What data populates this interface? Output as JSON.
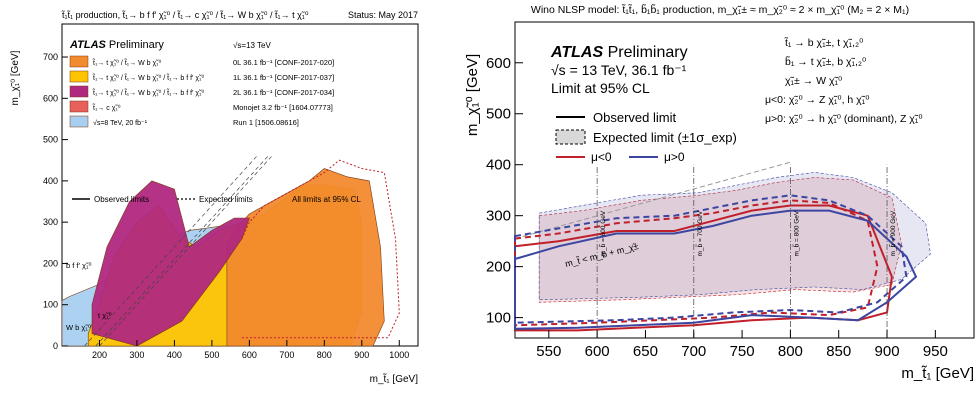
{
  "chart_data": [
    {
      "type": "area",
      "header": "t̃₁t̃₁ production, t̃₁→ b f f′ χ̃₁⁰ / t̃₁→ c χ̃₁⁰ / t̃₁→ W b χ̃₁⁰ / t̃₁→ t χ̃₁⁰",
      "status": "Status: May 2017",
      "brand": "ATLAS",
      "brand_suffix": "Preliminary",
      "xlabel": "m_t̃₁ [GeV]",
      "ylabel": "m_χ̃₁⁰ [GeV]",
      "xlim": [
        100,
        1050
      ],
      "ylim": [
        0,
        780
      ],
      "x_ticks": [
        200,
        300,
        400,
        500,
        600,
        700,
        800,
        900,
        1000
      ],
      "y_ticks": [
        0,
        100,
        200,
        300,
        400,
        500,
        600,
        700
      ],
      "legend_header": "√s=13 TeV",
      "legend": [
        {
          "label": "t̃₁→ t χ̃₁⁰ / t̃₁→ W b χ̃₁⁰",
          "ref": "0L 36.1 fb⁻¹ [CONF-2017-020]",
          "color": "#f28a2e"
        },
        {
          "label": "t̃₁→ t χ̃₁⁰ / t̃₁→ W b χ̃₁⁰ / t̃₁→ b f f′ χ̃₁⁰",
          "ref": "1L 36.1 fb⁻¹ [CONF-2017-037]",
          "color": "#ffc400"
        },
        {
          "label": "t̃₁→ t χ̃₁⁰ / t̃₁→ W b χ̃₁⁰ / t̃₁→ b f f′ χ̃₁⁰",
          "ref": "2L 36.1 fb⁻¹ [CONF-2017-034]",
          "color": "#b0287f"
        },
        {
          "label": "t̃₁→ c χ̃₁⁰",
          "ref": "Monojet 3.2 fb⁻¹ [1604.07773]",
          "color": "#e8605a"
        },
        {
          "label": "√s=8 TeV, 20 fb⁻¹",
          "ref": "Run 1 [1506.08616]",
          "color": "#a8cff0"
        }
      ],
      "line_legend": {
        "observed": "Observed limits",
        "expected": "Expected limits",
        "cl": "All limits at 95% CL"
      },
      "region_labels": [
        "b f f′ χ̃₁⁰",
        "W b χ̃₁⁰",
        "t χ̃₁⁰"
      ],
      "series": [
        {
          "name": "Run 1",
          "x": [
            100,
            720,
            720,
            690,
            650,
            600,
            520,
            440,
            360,
            280,
            200,
            120,
            100
          ],
          "y": [
            0,
            0,
            120,
            200,
            250,
            280,
            290,
            280,
            250,
            200,
            150,
            120,
            110
          ]
        },
        {
          "name": "1L",
          "x": [
            170,
            870,
            900,
            900,
            880,
            800,
            740,
            700,
            640,
            580,
            520,
            460,
            420,
            360,
            300,
            240,
            200,
            170
          ],
          "y": [
            0,
            0,
            80,
            300,
            380,
            390,
            390,
            360,
            320,
            300,
            280,
            240,
            260,
            340,
            300,
            220,
            100,
            30
          ]
        },
        {
          "name": "0L",
          "x": [
            540,
            930,
            960,
            950,
            920,
            860,
            800,
            760,
            700,
            640,
            600,
            560,
            540
          ],
          "y": [
            0,
            0,
            60,
            240,
            400,
            410,
            430,
            400,
            370,
            340,
            320,
            280,
            240
          ]
        },
        {
          "name": "2L",
          "x": [
            180,
            300,
            420,
            520,
            580,
            600,
            560,
            500,
            440,
            400,
            340,
            280,
            220,
            180
          ],
          "y": [
            30,
            0,
            60,
            180,
            260,
            310,
            310,
            280,
            240,
            380,
            400,
            350,
            240,
            100
          ]
        }
      ]
    },
    {
      "type": "area",
      "header": "Wino NLSP model: t̃₁t̃₁, b̃₁b̃₁ production, m_χ̃₁± ≈ m_χ̃₂⁰ ≈ 2 × m_χ̃₁⁰ (M₂ = 2 × M₁)",
      "brand": "ATLAS",
      "brand_suffix": "Preliminary",
      "energy": "√s = 13 TeV, 36.1 fb⁻¹",
      "cl_text": "Limit at 95% CL",
      "xlabel": "m_t̃₁ [GeV]",
      "ylabel": "m_χ̃₁⁰ [GeV]",
      "xlim": [
        515,
        990
      ],
      "ylim": [
        60,
        680
      ],
      "x_ticks": [
        550,
        600,
        650,
        700,
        750,
        800,
        850,
        900,
        950
      ],
      "y_ticks": [
        100,
        200,
        300,
        400,
        500,
        600
      ],
      "legend": {
        "observed": "Observed limit",
        "expected": "Expected limit (±1σ_exp)",
        "mu_neg": "μ<0",
        "mu_pos": "μ>0"
      },
      "decays": [
        "t̃₁ → b χ̃₁±, t χ̃₁,₂⁰",
        "b̃₁ → t χ̃₁±, b χ̃₁,₂⁰",
        "χ̃₁± → W χ̃₁⁰",
        "μ<0:  χ̃₂⁰ → Z χ̃₁⁰, h χ̃₁⁰",
        "μ>0:  χ̃₂⁰ → h χ̃₁⁰ (dominant), Z χ̃₁⁰"
      ],
      "diagonal_label": "m_t̃ < m_b + m_χ̃±",
      "vertical_labels": [
        "m_b̃ = 600 GeV",
        "m_b̃ = 700 GeV",
        "m_b̃ = 800 GeV",
        "m_b̃ = 900 GeV"
      ],
      "vertical_lines_x": [
        600,
        700,
        800,
        900
      ],
      "colors": {
        "mu_neg": "#c0202a",
        "mu_pos": "#3c46a0",
        "band": "#d3c4d4"
      },
      "series": [
        {
          "name": "μ<0",
          "style": "observed",
          "x": [
            515,
            560,
            620,
            680,
            720,
            760,
            800,
            840,
            880,
            905,
            900,
            870,
            820,
            760,
            700,
            640,
            580,
            515
          ],
          "y": [
            240,
            250,
            270,
            270,
            290,
            310,
            320,
            320,
            300,
            180,
            110,
            95,
            100,
            95,
            85,
            80,
            75,
            75
          ]
        },
        {
          "name": "μ<0",
          "style": "expected",
          "x": [
            515,
            560,
            620,
            680,
            720,
            760,
            800,
            840,
            880,
            890,
            880,
            840,
            780,
            720,
            660,
            600,
            515
          ],
          "y": [
            255,
            265,
            285,
            295,
            305,
            320,
            330,
            325,
            290,
            200,
            120,
            105,
            110,
            100,
            95,
            90,
            85
          ]
        },
        {
          "name": "μ>0",
          "style": "observed",
          "x": [
            515,
            560,
            620,
            680,
            720,
            760,
            800,
            840,
            880,
            920,
            930,
            900,
            870,
            820,
            760,
            700,
            640,
            580,
            515
          ],
          "y": [
            215,
            240,
            265,
            265,
            280,
            300,
            310,
            310,
            290,
            220,
            180,
            130,
            95,
            100,
            105,
            90,
            85,
            80,
            78
          ]
        },
        {
          "name": "μ>0",
          "style": "expected",
          "x": [
            515,
            560,
            620,
            680,
            720,
            760,
            800,
            840,
            880,
            915,
            920,
            890,
            850,
            800,
            740,
            680,
            620,
            515
          ],
          "y": [
            260,
            275,
            295,
            300,
            315,
            330,
            340,
            330,
            300,
            240,
            180,
            130,
            110,
            115,
            110,
            100,
            95,
            90
          ]
        }
      ]
    }
  ]
}
